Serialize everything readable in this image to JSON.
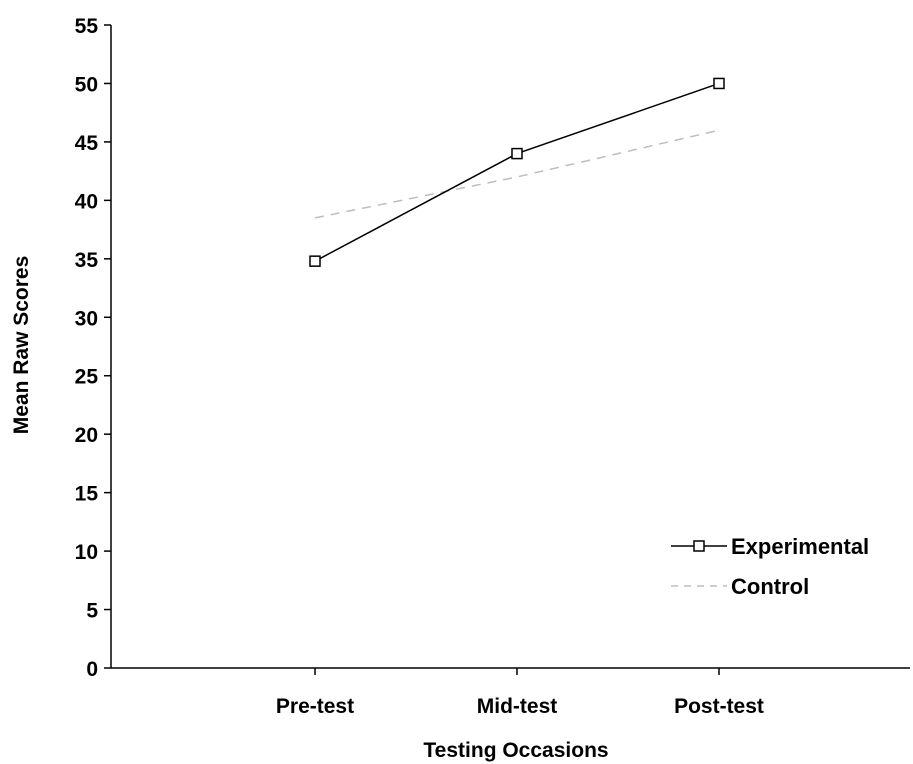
{
  "chart_data": {
    "type": "line",
    "title": "",
    "xlabel": "Testing Occasions",
    "ylabel": "Mean Raw Scores",
    "categories": [
      "Pre-test",
      "Mid-test",
      "Post-test"
    ],
    "ylim": [
      0,
      55
    ],
    "yticks": [
      0,
      5,
      10,
      15,
      20,
      25,
      30,
      35,
      40,
      45,
      50,
      55
    ],
    "grid": false,
    "legend_position": "bottom-right",
    "series": [
      {
        "name": "Experimental",
        "values": [
          34.8,
          44,
          50
        ],
        "color": "#000000",
        "marker": "square",
        "line_style": "solid"
      },
      {
        "name": "Control",
        "values": [
          38.5,
          42,
          46
        ],
        "color": "#bdbdbd",
        "marker": "none",
        "line_style": "dashed"
      }
    ]
  }
}
